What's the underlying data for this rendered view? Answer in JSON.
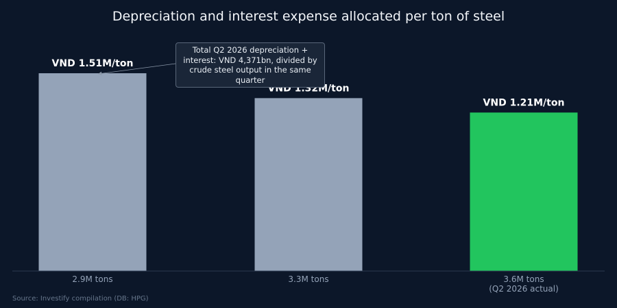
{
  "chart_data": {
    "type": "bar",
    "title": "Depreciation and interest expense allocated per ton of steel",
    "categories": [
      "2.9M tons",
      "3.3M tons",
      "3.6M tons\n(Q2 2026 actual)"
    ],
    "values": [
      1.51,
      1.32,
      1.21
    ],
    "value_labels": [
      "VND 1.51M/ton",
      "VND 1.32M/ton",
      "VND 1.21M/ton"
    ],
    "xlabel": "",
    "ylabel": "",
    "ylim": [
      0,
      1.51
    ],
    "grid": false,
    "highlight_index": 2,
    "colors": {
      "bar": "#94a3b8",
      "highlight": "#22c55e",
      "background": "#0c1729",
      "axis": "#2b3a50"
    },
    "annotation": {
      "text": "Total Q2 2026 depreciation + interest: VND 4,371bn, divided by crude steel output in the same quarter",
      "target_index": 0
    },
    "source": "Source: Investify compilation (DB: HPG)"
  }
}
